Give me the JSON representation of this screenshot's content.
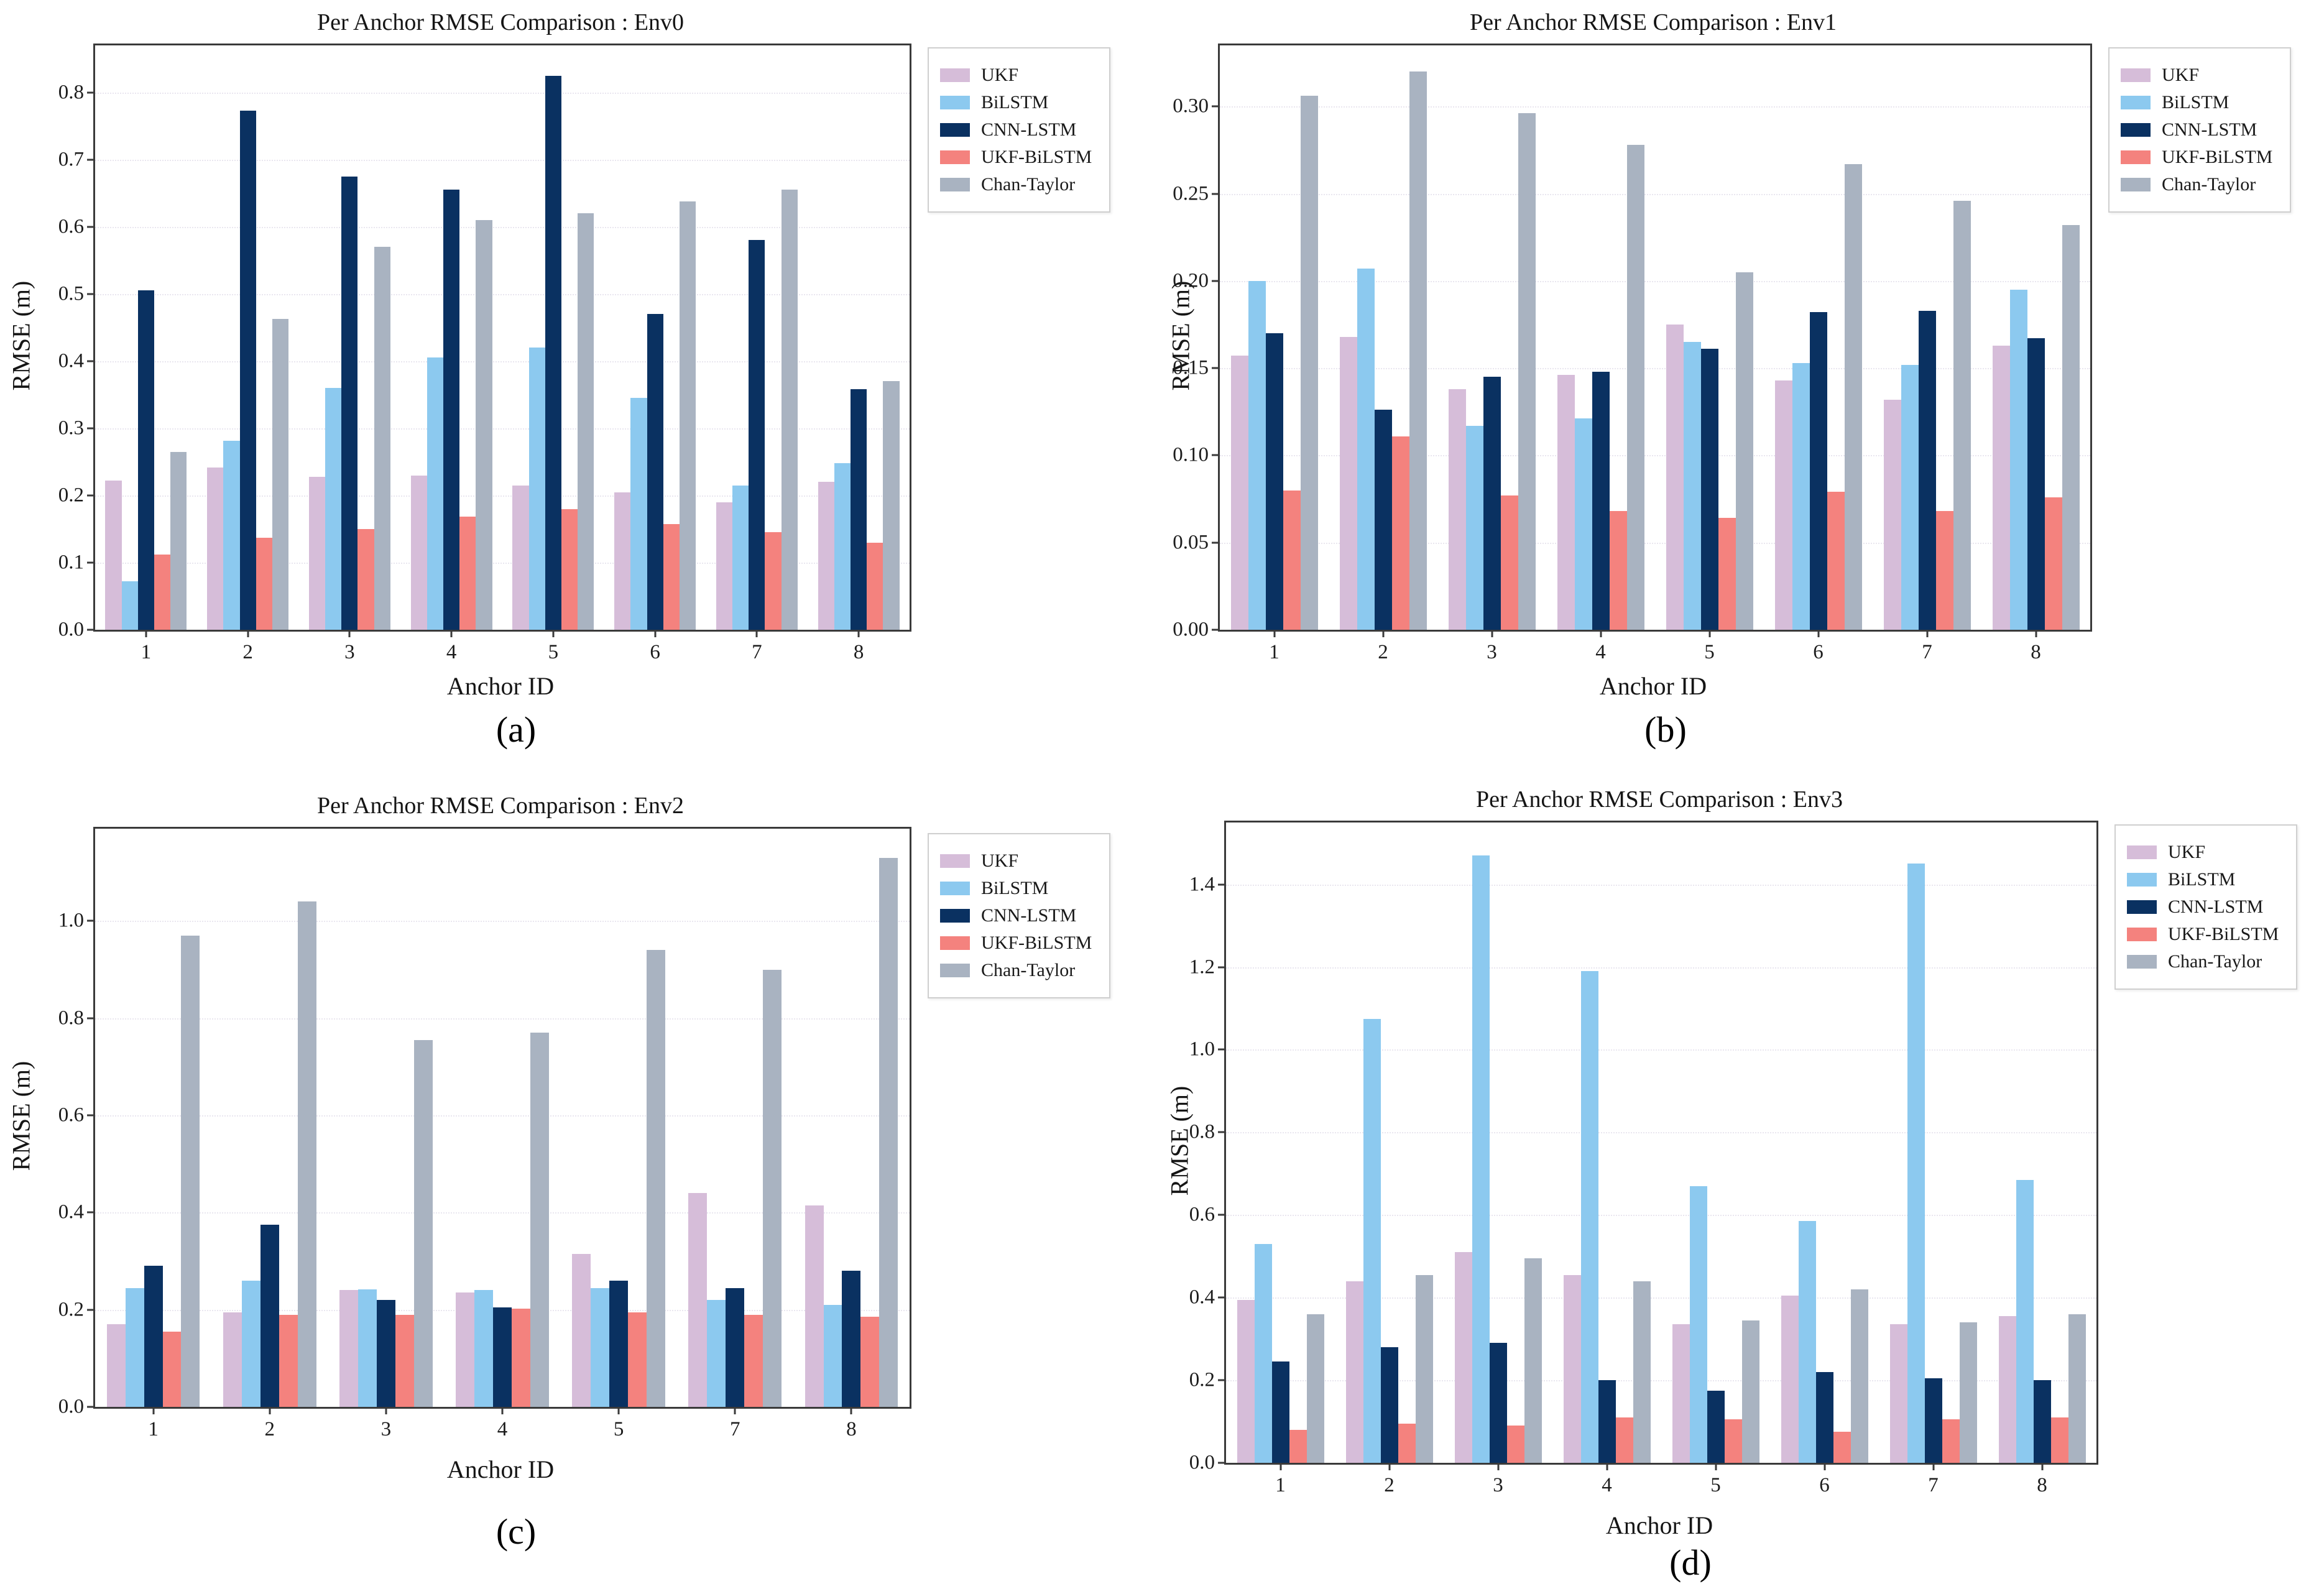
{
  "figure": {
    "background": "#ffffff",
    "text_color": "#151515",
    "axis_color": "#3a3a3a",
    "gridline_color": "#e9e6ef"
  },
  "legend_labels": [
    "UKF",
    "BiLSTM",
    "CNN-LSTM",
    "UKF-BiLSTM",
    "Chan-Taylor"
  ],
  "series_palette": {
    "UKF": "#D6BDD9",
    "BiLSTM": "#8CC9EF",
    "CNN-LSTM": "#0A3161",
    "UKF-BiLSTM": "#F4827E",
    "Chan-Taylor": "#A9B3C1"
  },
  "chart_data": [
    {
      "type": "bar",
      "title": "Per Anchor RMSE Comparison : Env0",
      "caption": "(a)",
      "xlabel": "Anchor ID",
      "ylabel": "RMSE (m)",
      "legend_position": "outside upper right",
      "grid": "horizontal dotted",
      "categories": [
        "1",
        "2",
        "3",
        "4",
        "5",
        "6",
        "7",
        "8"
      ],
      "ylim": [
        0,
        0.87
      ],
      "yticks": [
        0.0,
        0.1,
        0.2,
        0.3,
        0.4,
        0.5,
        0.6,
        0.7,
        0.8
      ],
      "ytick_labels": [
        "0.0",
        "0.1",
        "0.2",
        "0.3",
        "0.4",
        "0.5",
        "0.6",
        "0.7",
        "0.8"
      ],
      "series": [
        {
          "name": "UKF",
          "values": [
            0.222,
            0.242,
            0.228,
            0.23,
            0.215,
            0.205,
            0.19,
            0.22
          ]
        },
        {
          "name": "BiLSTM",
          "values": [
            0.072,
            0.281,
            0.36,
            0.405,
            0.42,
            0.345,
            0.215,
            0.248
          ]
        },
        {
          "name": "CNN-LSTM",
          "values": [
            0.505,
            0.773,
            0.675,
            0.655,
            0.825,
            0.47,
            0.58,
            0.358
          ]
        },
        {
          "name": "UKF-BiLSTM",
          "values": [
            0.112,
            0.137,
            0.15,
            0.168,
            0.18,
            0.157,
            0.145,
            0.13
          ]
        },
        {
          "name": "Chan-Taylor",
          "values": [
            0.265,
            0.463,
            0.57,
            0.61,
            0.62,
            0.638,
            0.655,
            0.37
          ]
        }
      ]
    },
    {
      "type": "bar",
      "title": "Per Anchor RMSE Comparison : Env1",
      "caption": "(b)",
      "xlabel": "Anchor ID",
      "ylabel": "RMSE (m)",
      "legend_position": "outside upper right",
      "grid": "horizontal dotted",
      "categories": [
        "1",
        "2",
        "3",
        "4",
        "5",
        "6",
        "7",
        "8"
      ],
      "ylim": [
        0,
        0.335
      ],
      "yticks": [
        0.0,
        0.05,
        0.1,
        0.15,
        0.2,
        0.25,
        0.3
      ],
      "ytick_labels": [
        "0.00",
        "0.05",
        "0.10",
        "0.15",
        "0.20",
        "0.25",
        "0.30"
      ],
      "series": [
        {
          "name": "UKF",
          "values": [
            0.157,
            0.168,
            0.138,
            0.146,
            0.175,
            0.143,
            0.132,
            0.163
          ]
        },
        {
          "name": "BiLSTM",
          "values": [
            0.2,
            0.207,
            0.117,
            0.121,
            0.165,
            0.153,
            0.152,
            0.195
          ]
        },
        {
          "name": "CNN-LSTM",
          "values": [
            0.17,
            0.126,
            0.145,
            0.148,
            0.161,
            0.182,
            0.183,
            0.167
          ]
        },
        {
          "name": "UKF-BiLSTM",
          "values": [
            0.08,
            0.111,
            0.077,
            0.068,
            0.064,
            0.079,
            0.068,
            0.076
          ]
        },
        {
          "name": "Chan-Taylor",
          "values": [
            0.306,
            0.32,
            0.296,
            0.278,
            0.205,
            0.267,
            0.246,
            0.232
          ]
        }
      ]
    },
    {
      "type": "bar",
      "title": "Per Anchor RMSE Comparison : Env2",
      "caption": "(c)",
      "xlabel": "Anchor ID",
      "ylabel": "RMSE (m)",
      "legend_position": "outside upper right",
      "grid": "horizontal dotted",
      "categories": [
        "1",
        "2",
        "3",
        "4",
        "5",
        "7",
        "8"
      ],
      "ylim": [
        0,
        1.19
      ],
      "yticks": [
        0.0,
        0.2,
        0.4,
        0.6,
        0.8,
        1.0
      ],
      "ytick_labels": [
        "0.0",
        "0.2",
        "0.4",
        "0.6",
        "0.8",
        "1.0"
      ],
      "series": [
        {
          "name": "UKF",
          "values": [
            0.17,
            0.195,
            0.24,
            0.235,
            0.315,
            0.44,
            0.415
          ]
        },
        {
          "name": "BiLSTM",
          "values": [
            0.245,
            0.26,
            0.242,
            0.24,
            0.245,
            0.22,
            0.21
          ]
        },
        {
          "name": "CNN-LSTM",
          "values": [
            0.29,
            0.375,
            0.22,
            0.205,
            0.26,
            0.245,
            0.28
          ]
        },
        {
          "name": "UKF-BiLSTM",
          "values": [
            0.155,
            0.19,
            0.19,
            0.202,
            0.195,
            0.19,
            0.185
          ]
        },
        {
          "name": "Chan-Taylor",
          "values": [
            0.97,
            1.04,
            0.755,
            0.77,
            0.94,
            0.9,
            1.13
          ]
        }
      ]
    },
    {
      "type": "bar",
      "title": "Per Anchor RMSE Comparison : Env3",
      "caption": "(d)",
      "xlabel": "Anchor ID",
      "ylabel": "RMSE (m)",
      "legend_position": "outside upper right",
      "grid": "horizontal dotted",
      "categories": [
        "1",
        "2",
        "3",
        "4",
        "5",
        "6",
        "7",
        "8"
      ],
      "ylim": [
        0,
        1.55
      ],
      "yticks": [
        0.0,
        0.2,
        0.4,
        0.6,
        0.8,
        1.0,
        1.2,
        1.4
      ],
      "ytick_labels": [
        "0.0",
        "0.2",
        "0.4",
        "0.6",
        "0.8",
        "1.0",
        "1.2",
        "1.4"
      ],
      "series": [
        {
          "name": "UKF",
          "values": [
            0.395,
            0.44,
            0.51,
            0.455,
            0.335,
            0.405,
            0.335,
            0.355
          ]
        },
        {
          "name": "BiLSTM",
          "values": [
            0.53,
            1.075,
            1.47,
            1.19,
            0.67,
            0.585,
            1.45,
            0.685
          ]
        },
        {
          "name": "CNN-LSTM",
          "values": [
            0.245,
            0.28,
            0.29,
            0.2,
            0.175,
            0.22,
            0.205,
            0.2
          ]
        },
        {
          "name": "UKF-BiLSTM",
          "values": [
            0.08,
            0.095,
            0.09,
            0.11,
            0.105,
            0.075,
            0.105,
            0.11
          ]
        },
        {
          "name": "Chan-Taylor",
          "values": [
            0.36,
            0.455,
            0.495,
            0.44,
            0.345,
            0.42,
            0.34,
            0.36
          ]
        }
      ]
    }
  ]
}
